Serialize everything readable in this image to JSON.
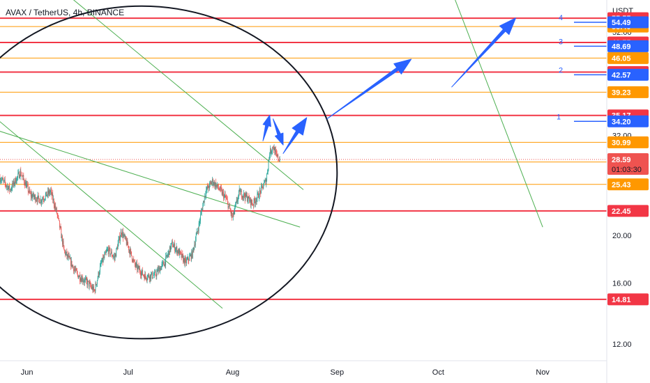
{
  "chart_data": {
    "type": "candlestick",
    "title": "AVAX / TetherUS, 4h, BINANCE",
    "ylabel": "USDT",
    "xlim": [
      "2023-05-24",
      "2023-11-20"
    ],
    "ylim": [
      11.1,
      60.5
    ],
    "y_scale": "log",
    "x_ticks": [
      {
        "date": "2023-06-01",
        "label": "Jun"
      },
      {
        "date": "2023-07-01",
        "label": "Jul"
      },
      {
        "date": "2023-08-01",
        "label": "Aug"
      },
      {
        "date": "2023-09-01",
        "label": "Sep"
      },
      {
        "date": "2023-10-01",
        "label": "Oct"
      },
      {
        "date": "2023-11-01",
        "label": "Nov"
      }
    ],
    "y_ticks": [
      {
        "value": 52.0,
        "label": "52.00"
      },
      {
        "value": 32.0,
        "label": "32.00"
      },
      {
        "value": 20.0,
        "label": "20.00"
      },
      {
        "value": 16.0,
        "label": "16.00"
      },
      {
        "value": 12.0,
        "label": "12.00"
      }
    ],
    "horizontal_levels": [
      {
        "value": 55.55,
        "label": "55.55",
        "color": "#f23645"
      },
      {
        "value": 53.4,
        "label": "53.40",
        "color": "#ff9800"
      },
      {
        "value": 49.55,
        "label": "49.55",
        "color": "#f23645"
      },
      {
        "value": 46.05,
        "label": "46.05",
        "color": "#ff9800"
      },
      {
        "value": 43.11,
        "label": "43.11",
        "color": "#f23645"
      },
      {
        "value": 39.23,
        "label": "39.23",
        "color": "#ff9800"
      },
      {
        "value": 35.17,
        "label": "35.17",
        "color": "#f23645"
      },
      {
        "value": 30.99,
        "label": "30.99",
        "color": "#ff9800"
      },
      {
        "value": 28.25,
        "label": "28.25",
        "color": "#ff9800"
      },
      {
        "value": 25.43,
        "label": "25.43",
        "color": "#ff9800"
      },
      {
        "value": 22.45,
        "label": "22.45",
        "color": "#f23645"
      },
      {
        "value": 14.81,
        "label": "14.81",
        "color": "#f23645"
      }
    ],
    "targets": [
      {
        "label": "1",
        "value": 34.2
      },
      {
        "label": "2",
        "value": 42.57
      },
      {
        "label": "3",
        "value": 48.69
      },
      {
        "label": "4",
        "value": 54.49
      }
    ],
    "current_price": {
      "value": 28.59,
      "label": "28.59",
      "countdown": "01:03:30",
      "color": "#ef5350"
    },
    "price_series": [
      {
        "date": "2023-05-24",
        "price": 26.2
      },
      {
        "date": "2023-05-27",
        "price": 24.8
      },
      {
        "date": "2023-05-30",
        "price": 26.9
      },
      {
        "date": "2023-06-02",
        "price": 24.2
      },
      {
        "date": "2023-06-05",
        "price": 23.6
      },
      {
        "date": "2023-06-08",
        "price": 24.6
      },
      {
        "date": "2023-06-10",
        "price": 22.0
      },
      {
        "date": "2023-06-12",
        "price": 18.6
      },
      {
        "date": "2023-06-14",
        "price": 17.6
      },
      {
        "date": "2023-06-16",
        "price": 16.6
      },
      {
        "date": "2023-06-19",
        "price": 16.0
      },
      {
        "date": "2023-06-21",
        "price": 15.4
      },
      {
        "date": "2023-06-23",
        "price": 17.5
      },
      {
        "date": "2023-06-25",
        "price": 18.7
      },
      {
        "date": "2023-06-27",
        "price": 18.0
      },
      {
        "date": "2023-06-29",
        "price": 20.4
      },
      {
        "date": "2023-07-01",
        "price": 19.0
      },
      {
        "date": "2023-07-03",
        "price": 17.4
      },
      {
        "date": "2023-07-06",
        "price": 16.5
      },
      {
        "date": "2023-07-09",
        "price": 16.6
      },
      {
        "date": "2023-07-12",
        "price": 17.7
      },
      {
        "date": "2023-07-14",
        "price": 19.2
      },
      {
        "date": "2023-07-16",
        "price": 18.5
      },
      {
        "date": "2023-07-18",
        "price": 17.6
      },
      {
        "date": "2023-07-20",
        "price": 18.3
      },
      {
        "date": "2023-07-22",
        "price": 21.0
      },
      {
        "date": "2023-07-24",
        "price": 24.6
      },
      {
        "date": "2023-07-26",
        "price": 25.8
      },
      {
        "date": "2023-07-28",
        "price": 24.9
      },
      {
        "date": "2023-07-30",
        "price": 23.8
      },
      {
        "date": "2023-08-01",
        "price": 21.7
      },
      {
        "date": "2023-08-03",
        "price": 24.5
      },
      {
        "date": "2023-08-05",
        "price": 24.0
      },
      {
        "date": "2023-08-07",
        "price": 23.2
      },
      {
        "date": "2023-08-09",
        "price": 24.4
      },
      {
        "date": "2023-08-11",
        "price": 26.0
      },
      {
        "date": "2023-08-12",
        "price": 29.5
      },
      {
        "date": "2023-08-13",
        "price": 30.4
      },
      {
        "date": "2023-08-14",
        "price": 29.0
      },
      {
        "date": "2023-08-15",
        "price": 28.59
      }
    ],
    "trend_lines": [
      {
        "from": {
          "date": "2023-05-18",
          "price": 20000
        },
        "to": {
          "date": "2023-11-01",
          "price": 20.8
        }
      },
      {
        "from": {
          "date": "2023-06-13",
          "price": 62.0
        },
        "to": {
          "date": "2023-08-22",
          "price": 24.8
        }
      },
      {
        "from": {
          "date": "2023-05-23",
          "price": 34.6
        },
        "to": {
          "date": "2023-07-29",
          "price": 14.2
        }
      },
      {
        "from": {
          "date": "2023-05-23",
          "price": 32.8
        },
        "to": {
          "date": "2023-08-21",
          "price": 20.8
        }
      }
    ],
    "arrows": [
      {
        "from": {
          "date": "2023-08-10",
          "price": 31.2
        },
        "to": {
          "date": "2023-08-12",
          "price": 35.2
        }
      },
      {
        "from": {
          "date": "2023-08-13",
          "price": 34.6
        },
        "to": {
          "date": "2023-08-16",
          "price": 30.6
        }
      },
      {
        "from": {
          "date": "2023-08-16",
          "price": 29.4
        },
        "to": {
          "date": "2023-08-23",
          "price": 34.8
        }
      },
      {
        "from": {
          "date": "2023-08-29",
          "price": 34.6
        },
        "to": {
          "date": "2023-09-23",
          "price": 45.8
        }
      },
      {
        "from": {
          "date": "2023-10-05",
          "price": 40.2
        },
        "to": {
          "date": "2023-10-24",
          "price": 55.6
        }
      }
    ],
    "ellipse": {
      "center": {
        "date": "2023-07-05",
        "price": 26.9
      },
      "top_price": 64.0,
      "bottom_price": 13.4,
      "left_date": "2023-05-08",
      "right_date": "2023-09-01"
    },
    "grid": false,
    "legend": "none"
  }
}
